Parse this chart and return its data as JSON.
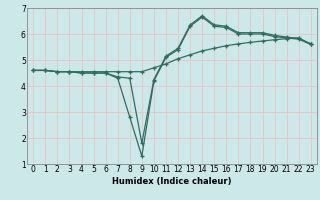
{
  "title": "",
  "xlabel": "Humidex (Indice chaleur)",
  "xlim": [
    -0.5,
    23.5
  ],
  "ylim": [
    1,
    7
  ],
  "yticks": [
    1,
    2,
    3,
    4,
    5,
    6,
    7
  ],
  "xticks": [
    0,
    1,
    2,
    3,
    4,
    5,
    6,
    7,
    8,
    9,
    10,
    11,
    12,
    13,
    14,
    15,
    16,
    17,
    18,
    19,
    20,
    21,
    22,
    23
  ],
  "background_color": "#cce8e8",
  "grid_color": "#e8c8c8",
  "line_color": "#2e6e60",
  "line1_x": [
    0,
    1,
    2,
    3,
    4,
    5,
    6,
    7,
    8,
    9,
    10,
    11,
    12,
    13,
    14,
    15,
    16,
    17,
    18,
    19,
    20,
    21,
    22,
    23
  ],
  "line1_y": [
    4.6,
    4.6,
    4.55,
    4.55,
    4.55,
    4.55,
    4.55,
    4.55,
    4.55,
    4.55,
    4.7,
    4.85,
    5.05,
    5.2,
    5.35,
    5.45,
    5.55,
    5.62,
    5.68,
    5.73,
    5.78,
    5.82,
    5.85,
    5.6
  ],
  "line2_x": [
    0,
    1,
    2,
    3,
    4,
    5,
    6,
    7,
    8,
    9,
    10,
    11,
    12,
    13,
    14,
    15,
    16,
    17,
    18,
    19,
    20,
    21,
    22,
    23
  ],
  "line2_y": [
    4.6,
    4.6,
    4.55,
    4.55,
    4.5,
    4.5,
    4.5,
    4.3,
    2.8,
    1.3,
    4.2,
    5.1,
    5.4,
    6.3,
    6.65,
    6.3,
    6.25,
    6.0,
    6.0,
    6.0,
    5.9,
    5.85,
    5.8,
    5.6
  ],
  "line3_x": [
    0,
    1,
    2,
    3,
    4,
    5,
    6,
    7,
    8,
    9,
    10,
    11,
    12,
    13,
    14,
    15,
    16,
    17,
    18,
    19,
    20,
    21,
    22,
    23
  ],
  "line3_y": [
    4.6,
    4.6,
    4.55,
    4.55,
    4.5,
    4.5,
    4.5,
    4.35,
    4.3,
    1.8,
    4.25,
    5.15,
    5.45,
    6.35,
    6.7,
    6.35,
    6.3,
    6.05,
    6.05,
    6.05,
    5.95,
    5.88,
    5.83,
    5.63
  ],
  "tick_fontsize": 5.5,
  "xlabel_fontsize": 6.0
}
